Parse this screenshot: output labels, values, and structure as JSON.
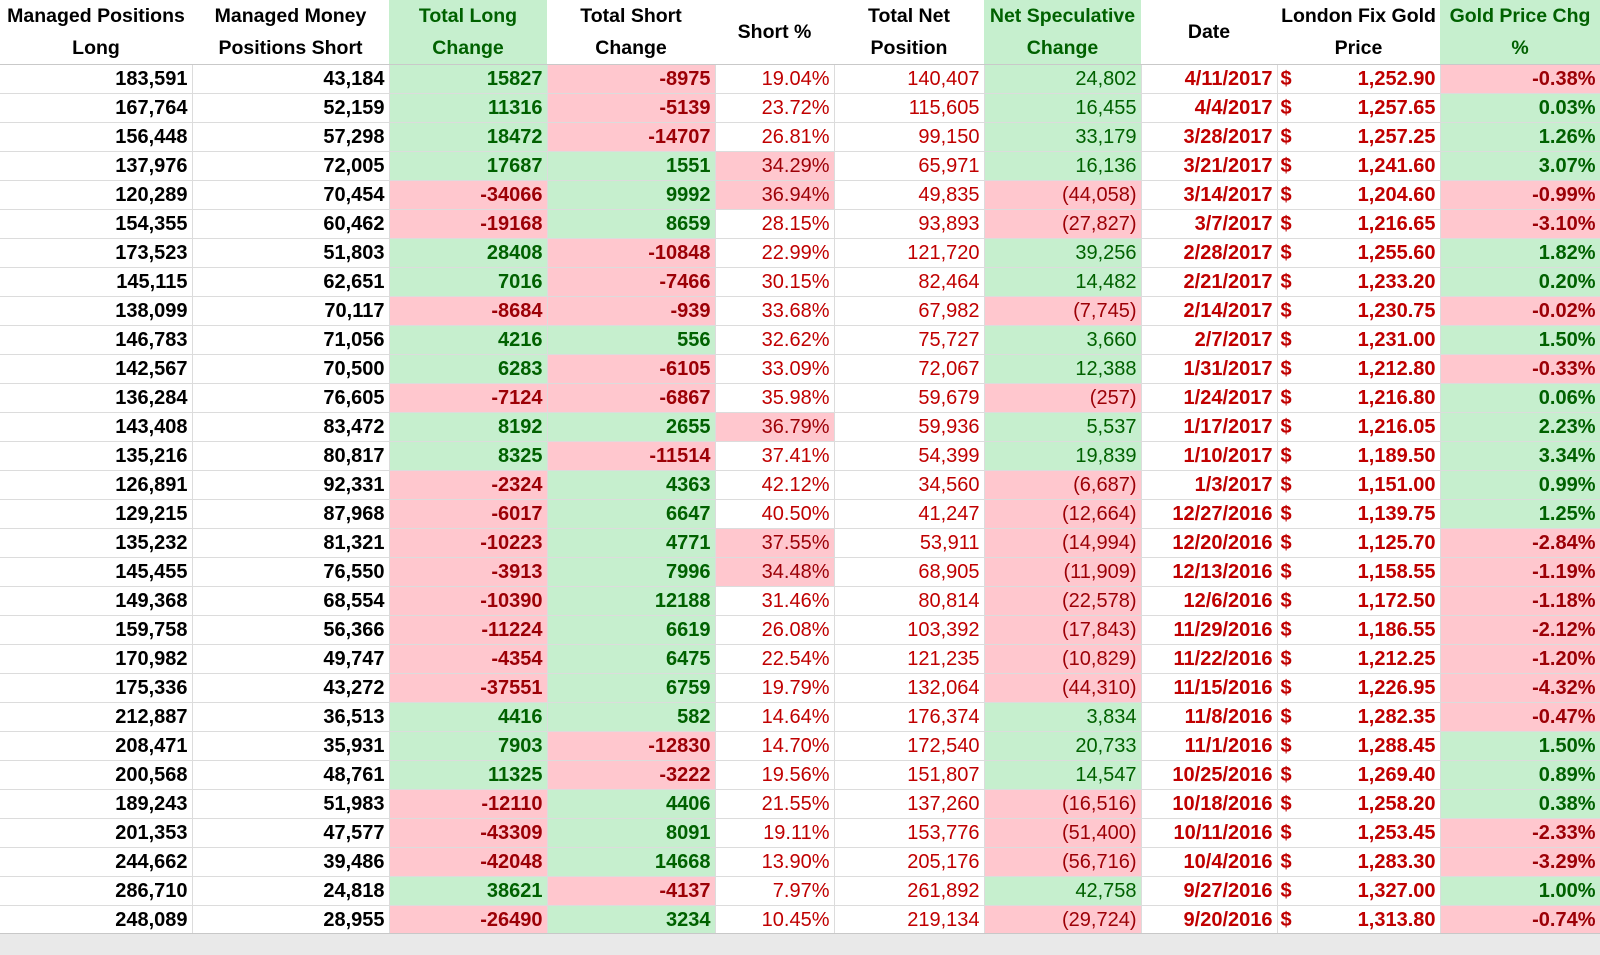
{
  "headers": [
    {
      "label": "Managed Positions Long",
      "style": "plain"
    },
    {
      "label": "Managed Money Positions Short",
      "style": "plain"
    },
    {
      "label": "Total Long Change",
      "style": "green"
    },
    {
      "label": "Total Short Change",
      "style": "plain"
    },
    {
      "label": "Short %",
      "style": "plain"
    },
    {
      "label": "Total Net Position",
      "style": "plain"
    },
    {
      "label": "Net Speculative Change",
      "style": "green"
    },
    {
      "label": "Date",
      "style": "plain"
    },
    {
      "label": "London Fix Gold Price",
      "style": "plain"
    },
    {
      "label": "Gold Price Chg %",
      "style": "green"
    }
  ],
  "colors": {
    "positive_fill": "#c6efce",
    "positive_text": "#006100",
    "negative_fill": "#ffc7ce",
    "negative_text": "#9c0006",
    "red_text": "#c00000"
  },
  "rows": [
    {
      "long": "183,591",
      "short": "43,184",
      "long_chg": "15827",
      "short_chg": "-8975",
      "short_pct": "19.04%",
      "net": "140,407",
      "net_spec_chg": "24,802",
      "date": "4/11/2017",
      "currency": "$",
      "gold_price": "1,252.90",
      "gold_chg": "-0.38%"
    },
    {
      "long": "167,764",
      "short": "52,159",
      "long_chg": "11316",
      "short_chg": "-5139",
      "short_pct": "23.72%",
      "net": "115,605",
      "net_spec_chg": "16,455",
      "date": "4/4/2017",
      "currency": "$",
      "gold_price": "1,257.65",
      "gold_chg": "0.03%"
    },
    {
      "long": "156,448",
      "short": "57,298",
      "long_chg": "18472",
      "short_chg": "-14707",
      "short_pct": "26.81%",
      "net": "99,150",
      "net_spec_chg": "33,179",
      "date": "3/28/2017",
      "currency": "$",
      "gold_price": "1,257.25",
      "gold_chg": "1.26%"
    },
    {
      "long": "137,976",
      "short": "72,005",
      "long_chg": "17687",
      "short_chg": "1551",
      "short_pct": "34.29%",
      "net": "65,971",
      "net_spec_chg": "16,136",
      "date": "3/21/2017",
      "currency": "$",
      "gold_price": "1,241.60",
      "gold_chg": "3.07%"
    },
    {
      "long": "120,289",
      "short": "70,454",
      "long_chg": "-34066",
      "short_chg": "9992",
      "short_pct": "36.94%",
      "net": "49,835",
      "net_spec_chg": "(44,058)",
      "date": "3/14/2017",
      "currency": "$",
      "gold_price": "1,204.60",
      "gold_chg": "-0.99%"
    },
    {
      "long": "154,355",
      "short": "60,462",
      "long_chg": "-19168",
      "short_chg": "8659",
      "short_pct": "28.15%",
      "net": "93,893",
      "net_spec_chg": "(27,827)",
      "date": "3/7/2017",
      "currency": "$",
      "gold_price": "1,216.65",
      "gold_chg": "-3.10%"
    },
    {
      "long": "173,523",
      "short": "51,803",
      "long_chg": "28408",
      "short_chg": "-10848",
      "short_pct": "22.99%",
      "net": "121,720",
      "net_spec_chg": "39,256",
      "date": "2/28/2017",
      "currency": "$",
      "gold_price": "1,255.60",
      "gold_chg": "1.82%"
    },
    {
      "long": "145,115",
      "short": "62,651",
      "long_chg": "7016",
      "short_chg": "-7466",
      "short_pct": "30.15%",
      "net": "82,464",
      "net_spec_chg": "14,482",
      "date": "2/21/2017",
      "currency": "$",
      "gold_price": "1,233.20",
      "gold_chg": "0.20%"
    },
    {
      "long": "138,099",
      "short": "70,117",
      "long_chg": "-8684",
      "short_chg": "-939",
      "short_pct": "33.68%",
      "net": "67,982",
      "net_spec_chg": "(7,745)",
      "date": "2/14/2017",
      "currency": "$",
      "gold_price": "1,230.75",
      "gold_chg": "-0.02%"
    },
    {
      "long": "146,783",
      "short": "71,056",
      "long_chg": "4216",
      "short_chg": "556",
      "short_pct": "32.62%",
      "net": "75,727",
      "net_spec_chg": "3,660",
      "date": "2/7/2017",
      "currency": "$",
      "gold_price": "1,231.00",
      "gold_chg": "1.50%"
    },
    {
      "long": "142,567",
      "short": "70,500",
      "long_chg": "6283",
      "short_chg": "-6105",
      "short_pct": "33.09%",
      "net": "72,067",
      "net_spec_chg": "12,388",
      "date": "1/31/2017",
      "currency": "$",
      "gold_price": "1,212.80",
      "gold_chg": "-0.33%"
    },
    {
      "long": "136,284",
      "short": "76,605",
      "long_chg": "-7124",
      "short_chg": "-6867",
      "short_pct": "35.98%",
      "net": "59,679",
      "net_spec_chg": "(257)",
      "date": "1/24/2017",
      "currency": "$",
      "gold_price": "1,216.80",
      "gold_chg": "0.06%"
    },
    {
      "long": "143,408",
      "short": "83,472",
      "long_chg": "8192",
      "short_chg": "2655",
      "short_pct": "36.79%",
      "net": "59,936",
      "net_spec_chg": "5,537",
      "date": "1/17/2017",
      "currency": "$",
      "gold_price": "1,216.05",
      "gold_chg": "2.23%"
    },
    {
      "long": "135,216",
      "short": "80,817",
      "long_chg": "8325",
      "short_chg": "-11514",
      "short_pct": "37.41%",
      "net": "54,399",
      "net_spec_chg": "19,839",
      "date": "1/10/2017",
      "currency": "$",
      "gold_price": "1,189.50",
      "gold_chg": "3.34%"
    },
    {
      "long": "126,891",
      "short": "92,331",
      "long_chg": "-2324",
      "short_chg": "4363",
      "short_pct": "42.12%",
      "net": "34,560",
      "net_spec_chg": "(6,687)",
      "date": "1/3/2017",
      "currency": "$",
      "gold_price": "1,151.00",
      "gold_chg": "0.99%"
    },
    {
      "long": "129,215",
      "short": "87,968",
      "long_chg": "-6017",
      "short_chg": "6647",
      "short_pct": "40.50%",
      "net": "41,247",
      "net_spec_chg": "(12,664)",
      "date": "12/27/2016",
      "currency": "$",
      "gold_price": "1,139.75",
      "gold_chg": "1.25%"
    },
    {
      "long": "135,232",
      "short": "81,321",
      "long_chg": "-10223",
      "short_chg": "4771",
      "short_pct": "37.55%",
      "net": "53,911",
      "net_spec_chg": "(14,994)",
      "date": "12/20/2016",
      "currency": "$",
      "gold_price": "1,125.70",
      "gold_chg": "-2.84%"
    },
    {
      "long": "145,455",
      "short": "76,550",
      "long_chg": "-3913",
      "short_chg": "7996",
      "short_pct": "34.48%",
      "net": "68,905",
      "net_spec_chg": "(11,909)",
      "date": "12/13/2016",
      "currency": "$",
      "gold_price": "1,158.55",
      "gold_chg": "-1.19%"
    },
    {
      "long": "149,368",
      "short": "68,554",
      "long_chg": "-10390",
      "short_chg": "12188",
      "short_pct": "31.46%",
      "net": "80,814",
      "net_spec_chg": "(22,578)",
      "date": "12/6/2016",
      "currency": "$",
      "gold_price": "1,172.50",
      "gold_chg": "-1.18%"
    },
    {
      "long": "159,758",
      "short": "56,366",
      "long_chg": "-11224",
      "short_chg": "6619",
      "short_pct": "26.08%",
      "net": "103,392",
      "net_spec_chg": "(17,843)",
      "date": "11/29/2016",
      "currency": "$",
      "gold_price": "1,186.55",
      "gold_chg": "-2.12%"
    },
    {
      "long": "170,982",
      "short": "49,747",
      "long_chg": "-4354",
      "short_chg": "6475",
      "short_pct": "22.54%",
      "net": "121,235",
      "net_spec_chg": "(10,829)",
      "date": "11/22/2016",
      "currency": "$",
      "gold_price": "1,212.25",
      "gold_chg": "-1.20%"
    },
    {
      "long": "175,336",
      "short": "43,272",
      "long_chg": "-37551",
      "short_chg": "6759",
      "short_pct": "19.79%",
      "net": "132,064",
      "net_spec_chg": "(44,310)",
      "date": "11/15/2016",
      "currency": "$",
      "gold_price": "1,226.95",
      "gold_chg": "-4.32%"
    },
    {
      "long": "212,887",
      "short": "36,513",
      "long_chg": "4416",
      "short_chg": "582",
      "short_pct": "14.64%",
      "net": "176,374",
      "net_spec_chg": "3,834",
      "date": "11/8/2016",
      "currency": "$",
      "gold_price": "1,282.35",
      "gold_chg": "-0.47%"
    },
    {
      "long": "208,471",
      "short": "35,931",
      "long_chg": "7903",
      "short_chg": "-12830",
      "short_pct": "14.70%",
      "net": "172,540",
      "net_spec_chg": "20,733",
      "date": "11/1/2016",
      "currency": "$",
      "gold_price": "1,288.45",
      "gold_chg": "1.50%"
    },
    {
      "long": "200,568",
      "short": "48,761",
      "long_chg": "11325",
      "short_chg": "-3222",
      "short_pct": "19.56%",
      "net": "151,807",
      "net_spec_chg": "14,547",
      "date": "10/25/2016",
      "currency": "$",
      "gold_price": "1,269.40",
      "gold_chg": "0.89%"
    },
    {
      "long": "189,243",
      "short": "51,983",
      "long_chg": "-12110",
      "short_chg": "4406",
      "short_pct": "21.55%",
      "net": "137,260",
      "net_spec_chg": "(16,516)",
      "date": "10/18/2016",
      "currency": "$",
      "gold_price": "1,258.20",
      "gold_chg": "0.38%"
    },
    {
      "long": "201,353",
      "short": "47,577",
      "long_chg": "-43309",
      "short_chg": "8091",
      "short_pct": "19.11%",
      "net": "153,776",
      "net_spec_chg": "(51,400)",
      "date": "10/11/2016",
      "currency": "$",
      "gold_price": "1,253.45",
      "gold_chg": "-2.33%"
    },
    {
      "long": "244,662",
      "short": "39,486",
      "long_chg": "-42048",
      "short_chg": "14668",
      "short_pct": "13.90%",
      "net": "205,176",
      "net_spec_chg": "(56,716)",
      "date": "10/4/2016",
      "currency": "$",
      "gold_price": "1,283.30",
      "gold_chg": "-3.29%"
    },
    {
      "long": "286,710",
      "short": "24,818",
      "long_chg": "38621",
      "short_chg": "-4137",
      "short_pct": "7.97%",
      "net": "261,892",
      "net_spec_chg": "42,758",
      "date": "9/27/2016",
      "currency": "$",
      "gold_price": "1,327.00",
      "gold_chg": "1.00%"
    },
    {
      "long": "248,089",
      "short": "28,955",
      "long_chg": "-26490",
      "short_chg": "3234",
      "short_pct": "10.45%",
      "net": "219,134",
      "net_spec_chg": "(29,724)",
      "date": "9/20/2016",
      "currency": "$",
      "gold_price": "1,313.80",
      "gold_chg": "-0.74%"
    }
  ]
}
